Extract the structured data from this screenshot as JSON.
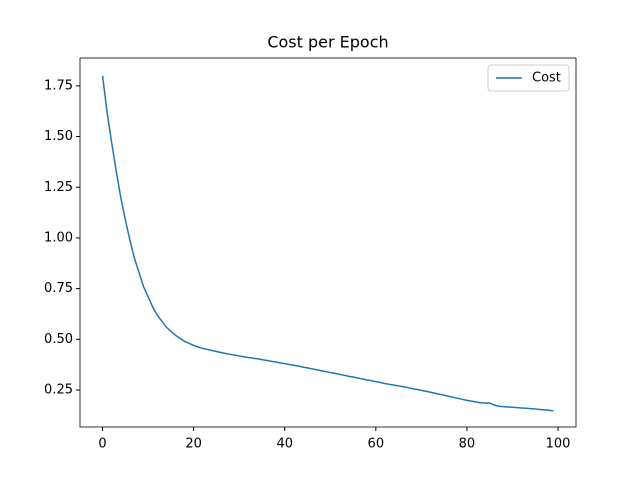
{
  "chart_data": {
    "type": "line",
    "title": "Cost per Epoch",
    "x": [
      0,
      1,
      2,
      3,
      4,
      5,
      6,
      7,
      8,
      9,
      10,
      11,
      12,
      13,
      14,
      15,
      16,
      17,
      18,
      19,
      20,
      21,
      22,
      23,
      24,
      25,
      26,
      27,
      28,
      29,
      30,
      31,
      32,
      33,
      34,
      35,
      36,
      37,
      38,
      39,
      40,
      41,
      42,
      43,
      44,
      45,
      46,
      47,
      48,
      49,
      50,
      51,
      52,
      53,
      54,
      55,
      56,
      57,
      58,
      59,
      60,
      61,
      62,
      63,
      64,
      65,
      66,
      67,
      68,
      69,
      70,
      71,
      72,
      73,
      74,
      75,
      76,
      77,
      78,
      79,
      80,
      81,
      82,
      83,
      84,
      85,
      86,
      87,
      88,
      89,
      90,
      91,
      92,
      93,
      94,
      95,
      96,
      97,
      98,
      99
    ],
    "series": [
      {
        "name": "Cost",
        "color": "#1f77b4",
        "values": [
          1.8,
          1.62,
          1.47,
          1.33,
          1.2,
          1.09,
          0.99,
          0.9,
          0.83,
          0.76,
          0.71,
          0.66,
          0.62,
          0.59,
          0.56,
          0.54,
          0.52,
          0.505,
          0.49,
          0.48,
          0.47,
          0.462,
          0.455,
          0.45,
          0.445,
          0.44,
          0.435,
          0.43,
          0.426,
          0.422,
          0.418,
          0.414,
          0.41,
          0.407,
          0.404,
          0.4,
          0.396,
          0.392,
          0.388,
          0.384,
          0.38,
          0.376,
          0.372,
          0.368,
          0.363,
          0.359,
          0.354,
          0.35,
          0.345,
          0.341,
          0.336,
          0.332,
          0.327,
          0.323,
          0.318,
          0.314,
          0.309,
          0.305,
          0.3,
          0.296,
          0.291,
          0.287,
          0.282,
          0.278,
          0.274,
          0.27,
          0.266,
          0.262,
          0.257,
          0.253,
          0.248,
          0.244,
          0.239,
          0.234,
          0.229,
          0.224,
          0.219,
          0.214,
          0.209,
          0.204,
          0.199,
          0.195,
          0.191,
          0.187,
          0.185,
          0.186,
          0.176,
          0.17,
          0.168,
          0.166,
          0.165,
          0.163,
          0.161,
          0.16,
          0.158,
          0.156,
          0.154,
          0.152,
          0.15,
          0.147
        ]
      }
    ],
    "xlim": [
      -4.95,
      103.95
    ],
    "xticks": [
      0,
      20,
      40,
      60,
      80,
      100
    ],
    "ylim": [
      0.0675,
      1.8875
    ],
    "yticks": [
      0.25,
      {
        "value": 0.5,
        "label": "0.50"
      },
      0.75,
      {
        "value": 1.0,
        "label": "1.00"
      },
      1.25,
      {
        "value": 1.5,
        "label": "1.50"
      },
      1.75
    ],
    "legend": "upper right"
  }
}
